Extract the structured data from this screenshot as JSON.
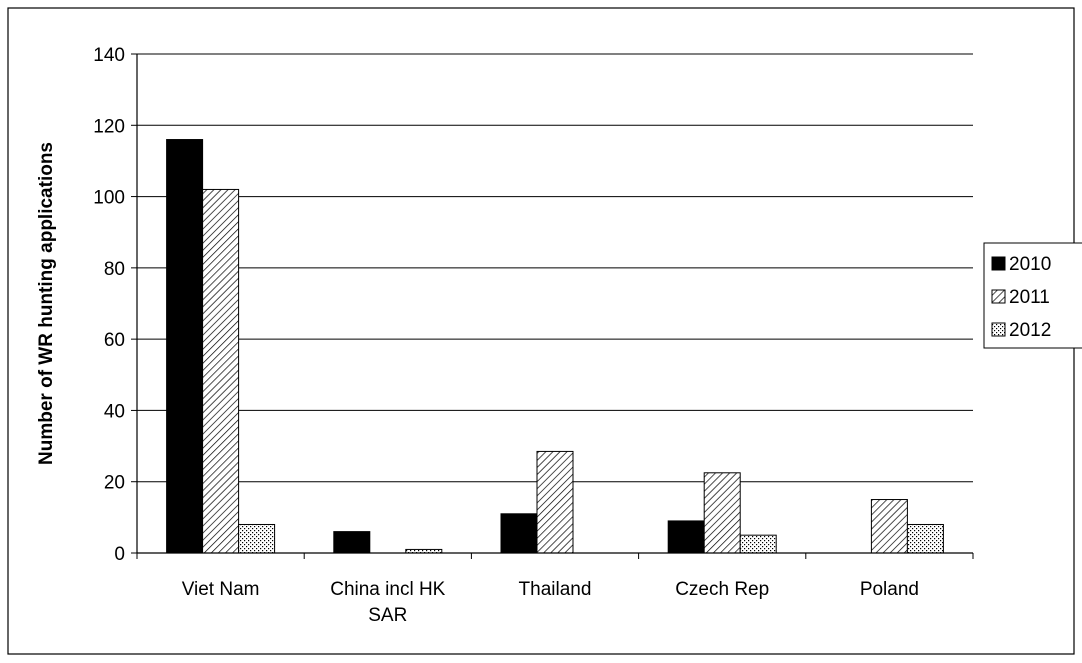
{
  "chart_data": {
    "type": "bar",
    "title": "",
    "xlabel": "",
    "ylabel": "Number of WR hunting applications",
    "ylim": [
      0,
      140
    ],
    "yticks": [
      0,
      20,
      40,
      60,
      80,
      100,
      120,
      140
    ],
    "grid": true,
    "legend_position": "right",
    "categories": [
      [
        "Viet Nam"
      ],
      [
        "China incl HK",
        "SAR"
      ],
      [
        "Thailand"
      ],
      [
        "Czech Rep"
      ],
      [
        "Poland"
      ]
    ],
    "series": [
      {
        "name": "2010",
        "fill": "solid",
        "color": "#000000",
        "values": [
          116,
          6,
          11,
          9,
          0
        ]
      },
      {
        "name": "2011",
        "fill": "diagonal-hatch",
        "color": "#000000",
        "values": [
          102,
          0,
          28.5,
          22.5,
          15
        ]
      },
      {
        "name": "2012",
        "fill": "dots",
        "color": "#000000",
        "values": [
          8,
          1,
          0,
          5,
          8
        ]
      }
    ]
  }
}
